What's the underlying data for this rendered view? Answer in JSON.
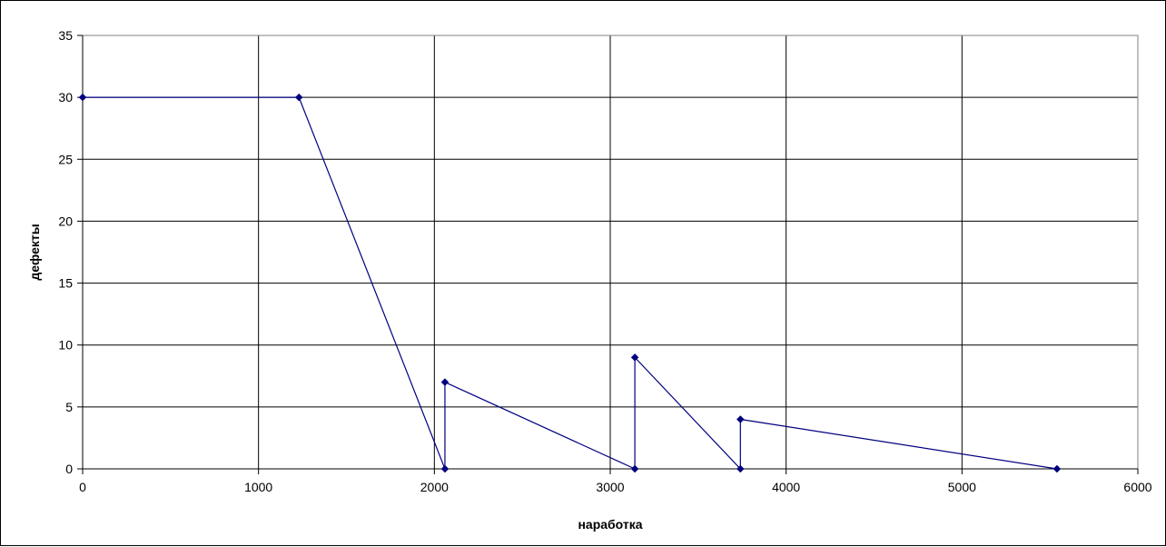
{
  "chart_data": {
    "type": "line",
    "title": "",
    "xlabel": "наработка",
    "ylabel": "дефекты",
    "xlim": [
      0,
      6000
    ],
    "ylim": [
      0,
      35
    ],
    "x_ticks": [
      0,
      1000,
      2000,
      3000,
      4000,
      5000,
      6000
    ],
    "y_ticks": [
      0,
      5,
      10,
      15,
      20,
      25,
      30,
      35
    ],
    "grid": true,
    "legend": "none",
    "series": [
      {
        "color": "#000080",
        "marker": "diamond",
        "points": [
          {
            "x": 0,
            "y": 30
          },
          {
            "x": 1230,
            "y": 30
          },
          {
            "x": 2060,
            "y": 0
          },
          {
            "x": 2060,
            "y": 7
          },
          {
            "x": 3140,
            "y": 0
          },
          {
            "x": 3140,
            "y": 9
          },
          {
            "x": 3740,
            "y": 0
          },
          {
            "x": 3740,
            "y": 4
          },
          {
            "x": 5540,
            "y": 0
          }
        ]
      }
    ]
  }
}
